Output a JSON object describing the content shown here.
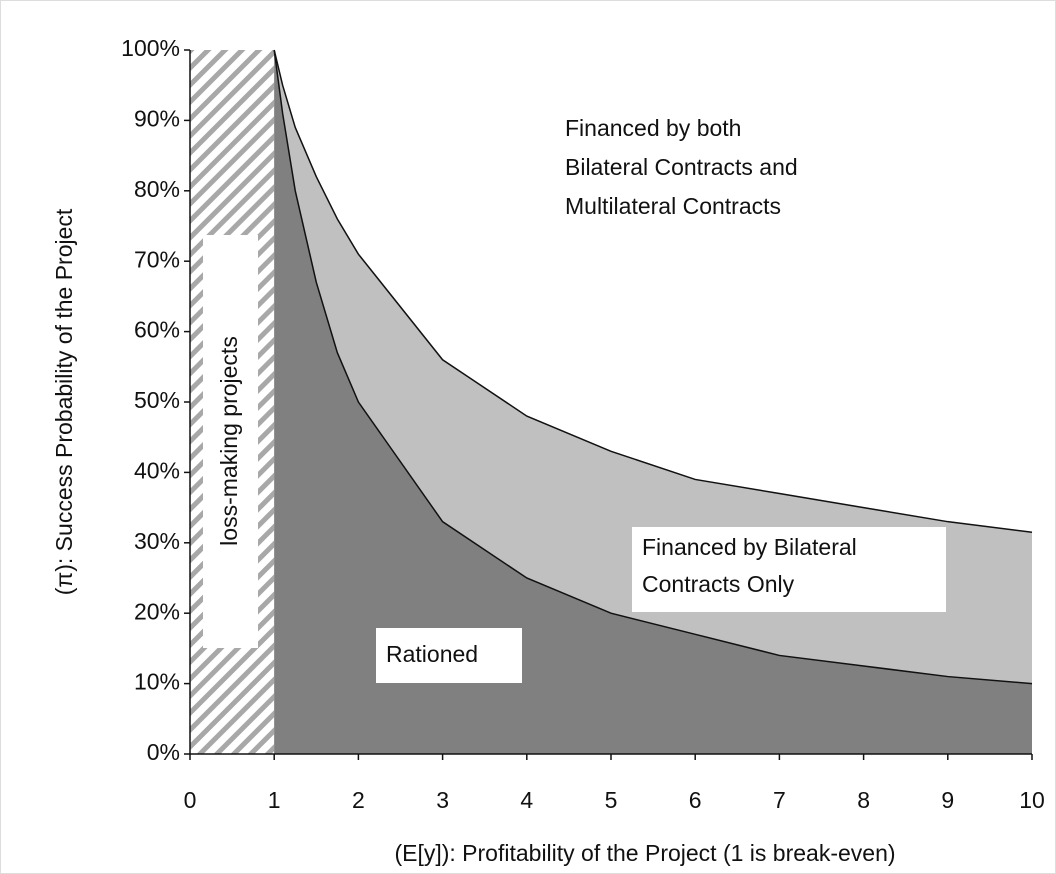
{
  "chart_data": {
    "type": "area",
    "x_label": "(E[y]): Profitability of the Project (1 is break-even)",
    "y_label": "(π): Success Probability of the Project",
    "x": [
      1,
      1.1,
      1.25,
      1.5,
      1.75,
      2,
      3,
      4,
      5,
      6,
      7,
      8,
      9,
      10
    ],
    "series": [
      {
        "color": "#808080",
        "values": [
          100,
          91,
          80,
          67,
          57,
          50,
          33,
          25,
          20,
          17,
          14,
          12.5,
          11,
          10
        ]
      },
      {
        "color": "#c0c0c0",
        "values": [
          100,
          95,
          89,
          82,
          76,
          71,
          56,
          48,
          43,
          39,
          37,
          35,
          33,
          31.5
        ]
      }
    ],
    "loss_region": {
      "x": [
        0,
        1
      ],
      "label": "loss-making projects"
    },
    "annotations": [
      {
        "lines": [
          "Financed by both",
          "Bilateral Contracts and",
          "Multilateral Contracts"
        ]
      },
      {
        "lines": [
          "Financed by Bilateral",
          "Contracts Only"
        ]
      },
      {
        "lines": [
          "Rationed"
        ]
      }
    ],
    "xlim": [
      0,
      10
    ],
    "xticks": [
      0,
      1,
      2,
      3,
      4,
      5,
      6,
      7,
      8,
      9,
      10
    ],
    "ylim": [
      0,
      100
    ],
    "yticks": [
      {
        "value": 0,
        "label": "0%"
      },
      {
        "value": 10,
        "label": "10%"
      },
      {
        "value": 20,
        "label": "20%"
      },
      {
        "value": 30,
        "label": "30%"
      },
      {
        "value": 40,
        "label": "40%"
      },
      {
        "value": 50,
        "label": "50%"
      },
      {
        "value": 60,
        "label": "60%"
      },
      {
        "value": 70,
        "label": "70%"
      },
      {
        "value": 80,
        "label": "80%"
      },
      {
        "value": 90,
        "label": "90%"
      },
      {
        "value": 100,
        "label": "100%"
      }
    ]
  }
}
